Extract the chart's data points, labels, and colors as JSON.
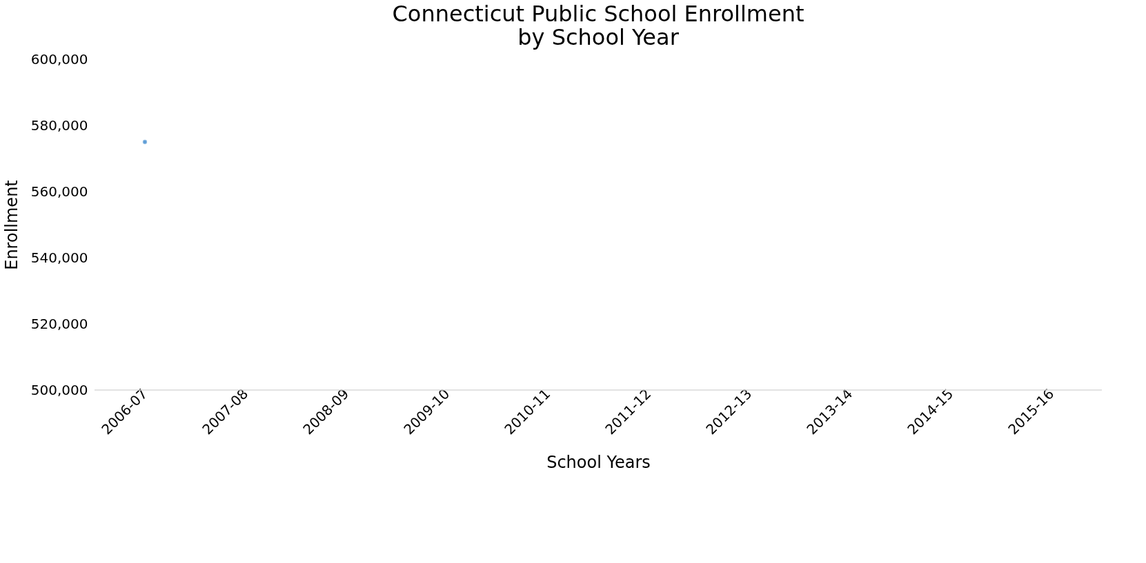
{
  "chart_data": {
    "type": "line",
    "title": [
      "Connecticut Public School Enrollment",
      "by School Year"
    ],
    "xlabel": "School Years",
    "ylabel": "Enrollment",
    "categories": [
      "2006-07",
      "2007-08",
      "2008-09",
      "2009-10",
      "2010-11",
      "2011-12",
      "2012-13",
      "2013-14",
      "2014-15",
      "2015-16"
    ],
    "series": [
      {
        "color": "#5b9bd5",
        "values": [
          575000,
          null,
          null,
          null,
          null,
          null,
          null,
          null,
          null,
          null
        ]
      }
    ],
    "ylim": [
      500000,
      600000
    ],
    "yticks": [
      {
        "value": 500000,
        "label": "500,000"
      },
      {
        "value": 520000,
        "label": "520,000"
      },
      {
        "value": 540000,
        "label": "540,000"
      },
      {
        "value": 560000,
        "label": "560,000"
      },
      {
        "value": 580000,
        "label": "580,000"
      },
      {
        "value": 600000,
        "label": "600,000"
      }
    ],
    "grid": false,
    "marker": "circle"
  }
}
